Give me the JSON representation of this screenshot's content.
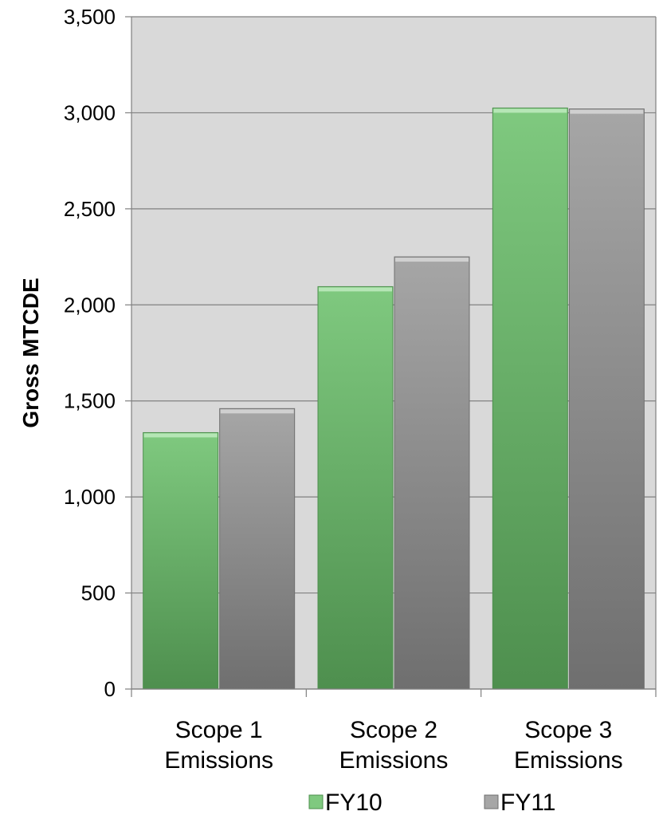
{
  "colors": {
    "plot_background": "#d9d9d9",
    "gridline": "#808080",
    "fy10_light": "#7fc97f",
    "fy10_dark": "#4e8f4e",
    "fy11_light": "#a6a6a6",
    "fy11_dark": "#6f6f6f"
  },
  "chart_data": {
    "type": "bar",
    "title": "",
    "xlabel": "",
    "ylabel": "Gross MTCDE",
    "ylim": [
      0,
      3500
    ],
    "y_ticks": [
      0,
      500,
      1000,
      1500,
      2000,
      2500,
      3000,
      3500
    ],
    "y_tick_labels": [
      "0",
      "500",
      "1,000",
      "1,500",
      "2,000",
      "2,500",
      "3,000",
      "3,500"
    ],
    "grid": true,
    "legend_position": "bottom",
    "categories": [
      [
        "Scope 1",
        "Emissions"
      ],
      [
        "Scope 2",
        "Emissions"
      ],
      [
        "Scope 3",
        "Emissions"
      ]
    ],
    "series": [
      {
        "name": "FY10",
        "values": [
          1335,
          2095,
          3025
        ]
      },
      {
        "name": "FY11",
        "values": [
          1460,
          2250,
          3020
        ]
      }
    ]
  }
}
